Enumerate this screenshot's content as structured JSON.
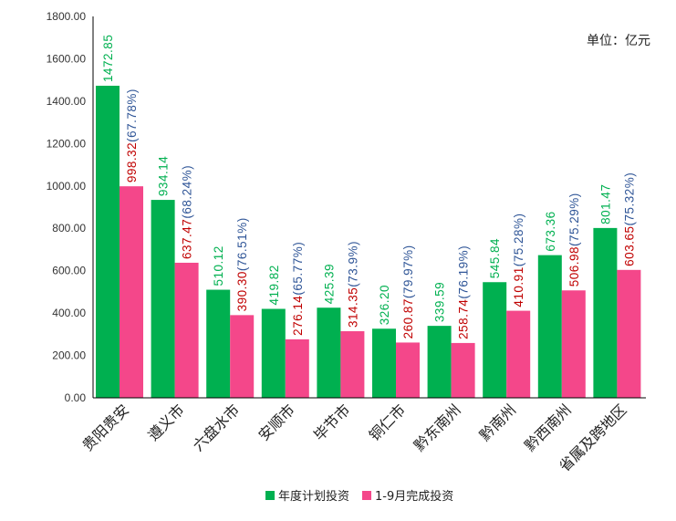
{
  "chart_data": {
    "type": "bar",
    "unit_label": "单位：亿元",
    "categories": [
      "贵阳贵安",
      "遵义市",
      "六盘水市",
      "安顺市",
      "毕节市",
      "铜仁市",
      "黔东南州",
      "黔南州",
      "黔西南州",
      "省属及跨地区"
    ],
    "series": [
      {
        "name": "年度计划投资",
        "color": "#00b050",
        "values": [
          1472.85,
          934.14,
          510.12,
          419.82,
          425.39,
          326.2,
          339.59,
          545.84,
          673.36,
          801.47
        ],
        "labels": [
          "1472.85",
          "934.14",
          "510.12",
          "419.82",
          "425.39",
          "326.20",
          "339.59",
          "545.84",
          "673.36",
          "801.47"
        ]
      },
      {
        "name": "1-9月完成投资",
        "color": "#f4478a",
        "values": [
          998.32,
          637.47,
          390.3,
          276.14,
          314.35,
          260.87,
          258.74,
          410.91,
          506.98,
          603.65
        ],
        "labels": [
          "998.32",
          "637.47",
          "390.30",
          "276.14",
          "314.35",
          "260.87",
          "258.74",
          "410.91",
          "506.98",
          "603.65"
        ],
        "pct_labels": [
          "(67.78%)",
          "(68.24%)",
          "(76.51%)",
          "(65.77%)",
          "(73.9%)",
          "(79.97%)",
          "(76.19%)",
          "(75.28%)",
          "(75.29%)",
          "(75.32%)"
        ]
      }
    ],
    "colors": {
      "plan_label": "#00b050",
      "done_label": "#c00000",
      "pct_label": "#2f5597",
      "axis": "#000000"
    },
    "ylim": [
      0,
      1800
    ],
    "yticks": [
      "0.00",
      "200.00",
      "400.00",
      "600.00",
      "800.00",
      "1000.00",
      "1200.00",
      "1400.00",
      "1600.00",
      "1800.00"
    ],
    "grid": false,
    "legend_position": "bottom"
  }
}
